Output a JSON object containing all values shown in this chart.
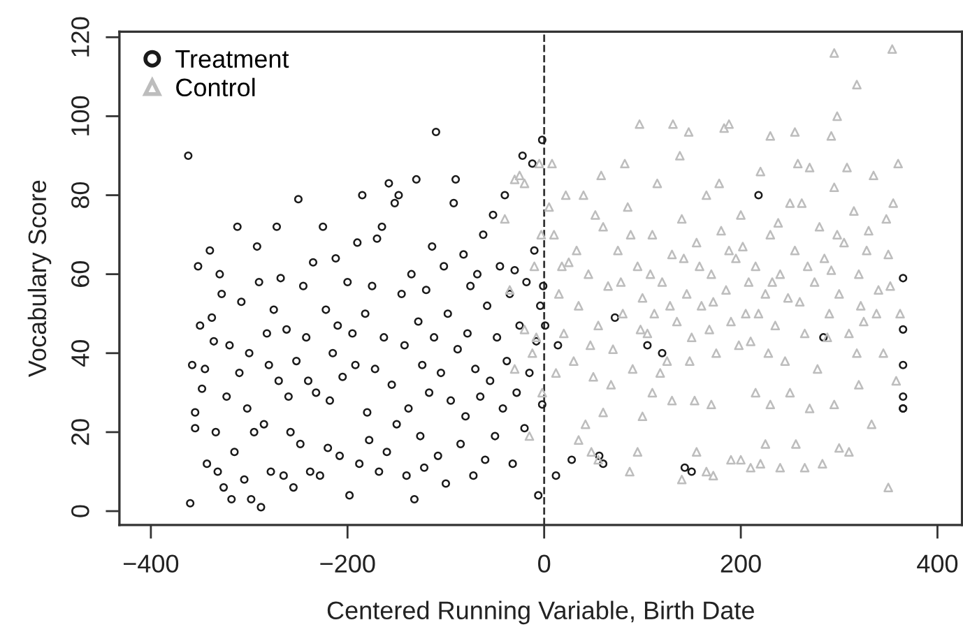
{
  "chart_data": {
    "type": "scatter",
    "xlabel": "Centered Running Variable, Birth Date",
    "ylabel": "Vocabulary Score",
    "xlim": [
      -432,
      425
    ],
    "ylim": [
      -3.5,
      121.4
    ],
    "xticks": [
      -400,
      -200,
      0,
      200,
      400
    ],
    "yticks": [
      0,
      20,
      40,
      60,
      80,
      100,
      120
    ],
    "grid": false,
    "legend": "top left",
    "ref_lines": [
      {
        "axis": "x",
        "value": 0,
        "label": null,
        "color": "#333333",
        "line_style": "dashed"
      }
    ],
    "series": [
      {
        "name": "Treatment",
        "color": "#1a1a1a",
        "marker": "circle",
        "x": [
          -362,
          -360,
          -358,
          -355,
          -355,
          -352,
          -350,
          -348,
          -345,
          -343,
          -340,
          -338,
          -336,
          -334,
          -332,
          -330,
          -328,
          -326,
          -323,
          -320,
          -318,
          -315,
          -312,
          -310,
          -308,
          -305,
          -302,
          -300,
          -298,
          -295,
          -292,
          -290,
          -288,
          -285,
          -282,
          -280,
          -278,
          -275,
          -272,
          -270,
          -268,
          -265,
          -262,
          -260,
          -258,
          -255,
          -252,
          -250,
          -248,
          -245,
          -242,
          -240,
          -238,
          -235,
          -232,
          -228,
          -225,
          -222,
          -220,
          -218,
          -215,
          -212,
          -210,
          -208,
          -205,
          -200,
          -198,
          -195,
          -192,
          -190,
          -188,
          -185,
          -182,
          -180,
          -178,
          -175,
          -172,
          -170,
          -168,
          -165,
          -163,
          -160,
          -158,
          -155,
          -152,
          -150,
          -148,
          -145,
          -142,
          -140,
          -138,
          -135,
          -132,
          -130,
          -128,
          -126,
          -124,
          -122,
          -120,
          -117,
          -114,
          -112,
          -110,
          -108,
          -105,
          -102,
          -100,
          -98,
          -95,
          -92,
          -90,
          -88,
          -85,
          -82,
          -80,
          -78,
          -75,
          -72,
          -70,
          -68,
          -65,
          -62,
          -60,
          -58,
          -55,
          -52,
          -50,
          -48,
          -45,
          -42,
          -40,
          -38,
          -35,
          -32,
          -30,
          -28,
          -25,
          -22,
          -20,
          -18,
          -15,
          -12,
          -10,
          -8,
          -6,
          -4,
          -2,
          -2,
          -1,
          1,
          12,
          14,
          28,
          56,
          60,
          72,
          105,
          120,
          143,
          150,
          218,
          284,
          365,
          365,
          365,
          365,
          365,
          365
        ],
        "values": [
          90,
          2,
          37,
          25,
          21,
          62,
          47,
          31,
          36,
          12,
          66,
          49,
          43,
          20,
          10,
          60,
          55,
          6,
          29,
          42,
          3,
          15,
          72,
          35,
          53,
          8,
          26,
          40,
          3,
          20,
          67,
          58,
          1,
          22,
          45,
          37,
          10,
          51,
          72,
          33,
          59,
          9,
          46,
          29,
          20,
          6,
          38,
          79,
          17,
          57,
          44,
          33,
          10,
          63,
          30,
          9,
          72,
          51,
          16,
          28,
          40,
          64,
          47,
          14,
          34,
          58,
          4,
          45,
          37,
          68,
          12,
          80,
          50,
          25,
          18,
          57,
          36,
          69,
          10,
          72,
          44,
          15,
          83,
          32,
          78,
          22,
          80,
          55,
          42,
          9,
          26,
          60,
          3,
          84,
          48,
          19,
          37,
          11,
          56,
          30,
          67,
          44,
          96,
          14,
          35,
          62,
          7,
          50,
          28,
          78,
          84,
          41,
          17,
          65,
          24,
          45,
          57,
          9,
          36,
          60,
          29,
          70,
          13,
          52,
          33,
          75,
          19,
          44,
          62,
          26,
          80,
          38,
          55,
          12,
          61,
          30,
          47,
          90,
          21,
          58,
          35,
          88,
          66,
          43,
          4,
          52,
          94,
          27,
          57,
          47,
          9,
          42,
          13,
          14,
          12,
          49,
          42,
          40,
          11,
          10,
          80,
          44,
          59,
          46,
          37,
          29,
          26,
          26
        ]
      },
      {
        "name": "Control",
        "color": "#bdbdbd",
        "marker": "triangle",
        "x": [
          -40,
          -35,
          -30,
          -25,
          -20,
          -15,
          -12,
          -10,
          -8,
          -5,
          -3,
          -2,
          -20,
          -30,
          295,
          354,
          318,
          298,
          97,
          131,
          147,
          183,
          188,
          255,
          230,
          292,
          8,
          35,
          42,
          48,
          55,
          87,
          95,
          140,
          155,
          165,
          172,
          190,
          200,
          210,
          220,
          225,
          240,
          256,
          265,
          283,
          300,
          310,
          350,
          333,
          60,
          100,
          110,
          130,
          153,
          170,
          215,
          230,
          250,
          270,
          295,
          320,
          5,
          10,
          15,
          20,
          25,
          30,
          35,
          40,
          45,
          50,
          55,
          60,
          65,
          70,
          75,
          80,
          85,
          90,
          95,
          100,
          105,
          110,
          115,
          120,
          125,
          130,
          135,
          140,
          145,
          150,
          155,
          160,
          165,
          170,
          175,
          180,
          185,
          190,
          195,
          200,
          205,
          210,
          215,
          220,
          225,
          230,
          235,
          240,
          245,
          250,
          255,
          260,
          265,
          270,
          275,
          280,
          285,
          290,
          295,
          300,
          305,
          310,
          315,
          320,
          325,
          330,
          335,
          340,
          345,
          350,
          355,
          360,
          362,
          358,
          12,
          22,
          33,
          47,
          58,
          68,
          78,
          88,
          98,
          108,
          118,
          128,
          138,
          148,
          158,
          168,
          178,
          188,
          198,
          208,
          218,
          228,
          238,
          248,
          258,
          268,
          278,
          288,
          298,
          308,
          318,
          328,
          338,
          348,
          18,
          52,
          82,
          112,
          142,
          172,
          202,
          232,
          262,
          292,
          322,
          352
        ],
        "values": [
          74,
          56,
          84,
          85,
          83,
          19,
          40,
          62,
          44,
          88,
          70,
          30,
          46,
          36,
          116,
          117,
          108,
          100,
          98,
          98,
          96,
          97,
          98,
          96,
          95,
          95,
          88,
          18,
          22,
          15,
          13,
          10,
          15,
          8,
          15,
          10,
          9,
          13,
          13,
          11,
          12,
          17,
          11,
          17,
          11,
          12,
          16,
          15,
          6,
          22,
          25,
          24,
          30,
          28,
          28,
          27,
          30,
          27,
          30,
          26,
          27,
          32,
          77,
          70,
          55,
          45,
          63,
          38,
          52,
          80,
          60,
          34,
          47,
          72,
          57,
          41,
          66,
          50,
          77,
          36,
          62,
          54,
          45,
          70,
          83,
          58,
          38,
          65,
          48,
          74,
          55,
          44,
          68,
          52,
          80,
          60,
          40,
          71,
          56,
          48,
          64,
          75,
          50,
          43,
          62,
          86,
          55,
          70,
          47,
          60,
          38,
          78,
          66,
          53,
          45,
          87,
          58,
          72,
          64,
          50,
          82,
          55,
          68,
          45,
          76,
          60,
          48,
          71,
          85,
          56,
          40,
          65,
          78,
          88,
          50,
          33,
          35,
          80,
          66,
          42,
          85,
          32,
          58,
          70,
          46,
          60,
          35,
          52,
          90,
          38,
          62,
          46,
          83,
          66,
          42,
          58,
          50,
          40,
          73,
          54,
          88,
          62,
          36,
          44,
          70,
          87,
          40,
          66,
          50,
          74,
          62,
          75,
          88,
          50,
          64,
          53,
          67,
          58,
          78,
          61,
          52,
          57
        ]
      }
    ]
  }
}
